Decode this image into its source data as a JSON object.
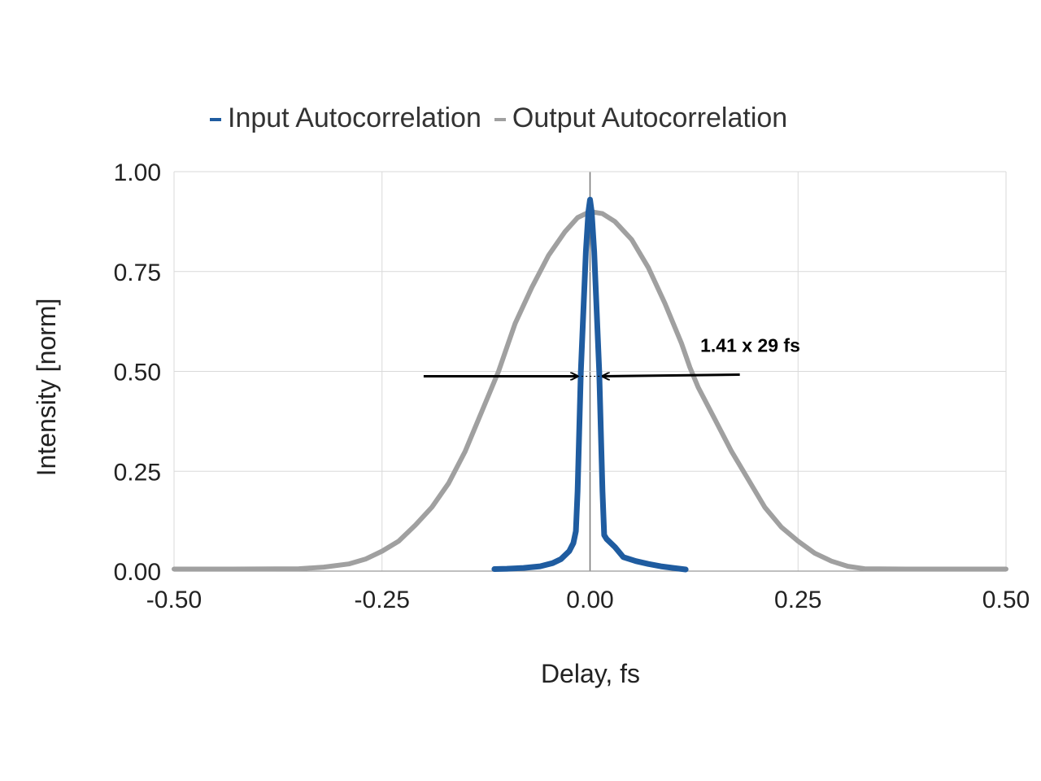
{
  "chart_data": {
    "type": "line",
    "title": "",
    "xlabel": "Delay, fs",
    "ylabel": "Intensity [norm]",
    "xlim": [
      -0.5,
      0.5
    ],
    "ylim": [
      0,
      1
    ],
    "x_ticks": [
      "-0.50",
      "-0.25",
      "0.00",
      "0.25",
      "0.50"
    ],
    "y_ticks": [
      "0.00",
      "0.25",
      "0.50",
      "0.75",
      "1.00"
    ],
    "grid": true,
    "legend_position": "top",
    "annotation": {
      "text": "1.41 x 29 fs",
      "at_y": 0.5,
      "arrow_left_tail_x": -0.2,
      "arrow_left_head_x": -0.015,
      "arrow_right_tail_x": 0.18,
      "arrow_right_head_x": 0.015
    },
    "series": [
      {
        "name": "Input Autocorrelation",
        "color": "#1f5ca0",
        "points": [
          [
            -0.115,
            0.005
          ],
          [
            -0.1,
            0.006
          ],
          [
            -0.08,
            0.008
          ],
          [
            -0.06,
            0.012
          ],
          [
            -0.045,
            0.02
          ],
          [
            -0.035,
            0.03
          ],
          [
            -0.025,
            0.05
          ],
          [
            -0.02,
            0.07
          ],
          [
            -0.017,
            0.1
          ],
          [
            -0.015,
            0.2
          ],
          [
            -0.013,
            0.35
          ],
          [
            -0.011,
            0.5
          ],
          [
            -0.008,
            0.65
          ],
          [
            -0.005,
            0.8
          ],
          [
            -0.002,
            0.9
          ],
          [
            0.0,
            0.93
          ],
          [
            0.002,
            0.9
          ],
          [
            0.005,
            0.8
          ],
          [
            0.008,
            0.65
          ],
          [
            0.011,
            0.5
          ],
          [
            0.013,
            0.35
          ],
          [
            0.015,
            0.2
          ],
          [
            0.017,
            0.09
          ],
          [
            0.02,
            0.08
          ],
          [
            0.03,
            0.06
          ],
          [
            0.04,
            0.035
          ],
          [
            0.055,
            0.025
          ],
          [
            0.07,
            0.018
          ],
          [
            0.085,
            0.012
          ],
          [
            0.1,
            0.008
          ],
          [
            0.115,
            0.004
          ]
        ]
      },
      {
        "name": "Output Autocorrelation",
        "color": "#a0a0a0",
        "points": [
          [
            -0.5,
            0.005
          ],
          [
            -0.43,
            0.005
          ],
          [
            -0.35,
            0.006
          ],
          [
            -0.32,
            0.01
          ],
          [
            -0.29,
            0.018
          ],
          [
            -0.27,
            0.03
          ],
          [
            -0.25,
            0.05
          ],
          [
            -0.23,
            0.075
          ],
          [
            -0.21,
            0.115
          ],
          [
            -0.19,
            0.16
          ],
          [
            -0.17,
            0.22
          ],
          [
            -0.15,
            0.3
          ],
          [
            -0.13,
            0.4
          ],
          [
            -0.11,
            0.5
          ],
          [
            -0.1,
            0.56
          ],
          [
            -0.09,
            0.62
          ],
          [
            -0.07,
            0.71
          ],
          [
            -0.05,
            0.79
          ],
          [
            -0.03,
            0.85
          ],
          [
            -0.015,
            0.885
          ],
          [
            0.0,
            0.9
          ],
          [
            0.015,
            0.895
          ],
          [
            0.03,
            0.875
          ],
          [
            0.05,
            0.83
          ],
          [
            0.07,
            0.76
          ],
          [
            0.09,
            0.67
          ],
          [
            0.11,
            0.57
          ],
          [
            0.12,
            0.51
          ],
          [
            0.13,
            0.46
          ],
          [
            0.15,
            0.38
          ],
          [
            0.17,
            0.3
          ],
          [
            0.19,
            0.23
          ],
          [
            0.21,
            0.16
          ],
          [
            0.23,
            0.11
          ],
          [
            0.25,
            0.075
          ],
          [
            0.27,
            0.045
          ],
          [
            0.29,
            0.025
          ],
          [
            0.31,
            0.012
          ],
          [
            0.33,
            0.006
          ],
          [
            0.38,
            0.005
          ],
          [
            0.45,
            0.005
          ],
          [
            0.5,
            0.005
          ]
        ]
      }
    ]
  }
}
